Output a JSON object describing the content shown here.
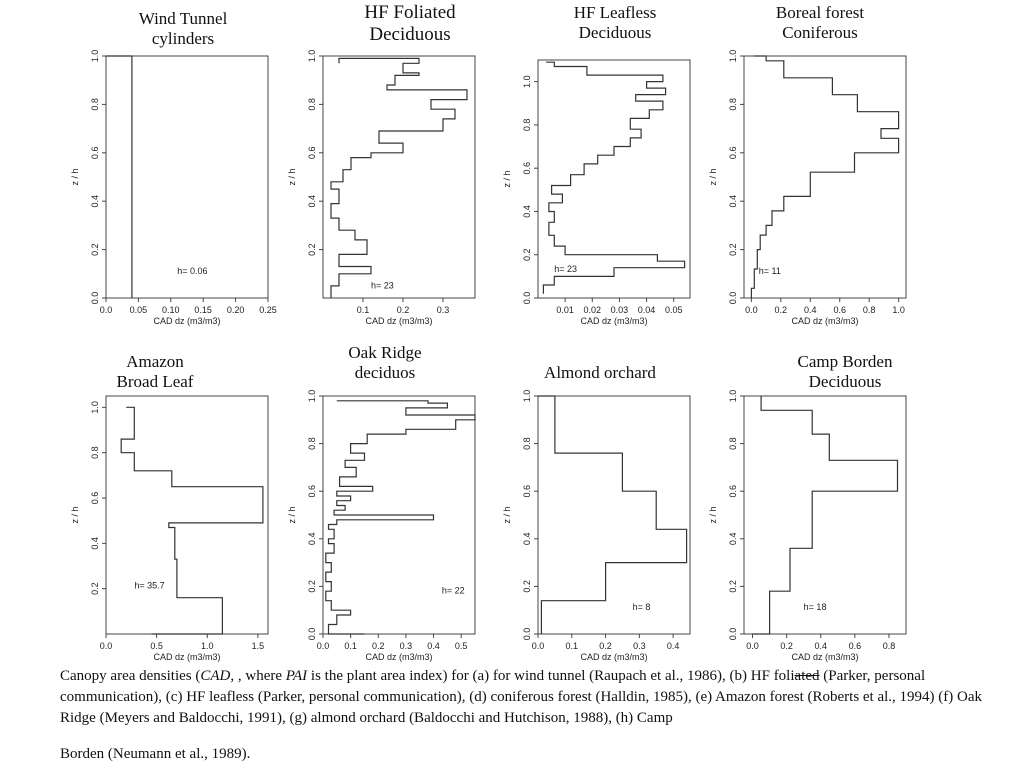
{
  "figure": {
    "caption": {
      "part1": "Canopy area densities (",
      "cad_italic": "CAD",
      "part2": ", , where ",
      "pai_italic": "PAI",
      "part3": " is the plant area index) for (a) for wind tunnel (Raupach et al., 1986), (b) HF foli",
      "strike_text": "ated",
      "part4": " (Parker, personal communication), (c) HF leafless (Parker, personal communication), (d) coniferous forest (Halldin, 1985), (e) Amazon forest (Roberts et al., 1994) (f) Oak Ridge (Meyers and Baldocchi, 1991), (g) almond orchard (Baldocchi and Hutchison, 1988), (h) Camp",
      "line_last": "Borden (Neumann et al., 1989)."
    }
  },
  "chart_data": [
    {
      "type": "line",
      "title": "Wind Tunnel\ncylinders",
      "xlabel": "CAD dz (m3/m3)",
      "ylabel": "z / h",
      "xlim": [
        0,
        0.25
      ],
      "ylim": [
        0,
        1.0
      ],
      "xticks": [
        "0.0",
        "0.05",
        "0.10",
        "0.15",
        "0.20",
        "0.25"
      ],
      "xtick_values": [
        0,
        0.05,
        0.1,
        0.15,
        0.2,
        0.25
      ],
      "yticks": [
        "0.0",
        "0.2",
        "0.4",
        "0.6",
        "0.8",
        "1.0"
      ],
      "ytick_values": [
        0,
        0.2,
        0.4,
        0.6,
        0.8,
        1.0
      ],
      "annotation": "h= 0.06",
      "annotation_pos": [
        0.11,
        0.1
      ],
      "series": [
        {
          "x": [
            0.0,
            0.04,
            0.04,
            0.04
          ],
          "y": [
            1.0,
            1.0,
            0.5,
            0.0
          ]
        }
      ]
    },
    {
      "type": "line",
      "title": "HF Foliated\nDeciduous",
      "xlabel": "CAD dz (m3/m3)",
      "ylabel": "z / h",
      "xlim": [
        0,
        0.38
      ],
      "ylim": [
        0,
        1.0
      ],
      "xticks": [
        "0.1",
        "0.2",
        "0.3"
      ],
      "xtick_values": [
        0.1,
        0.2,
        0.3
      ],
      "yticks": [
        "0.2",
        "0.4",
        "0.6",
        "0.8",
        "1.0"
      ],
      "ytick_values": [
        0.2,
        0.4,
        0.6,
        0.8,
        1.0
      ],
      "annotation": "h= 23",
      "annotation_pos": [
        0.12,
        0.04
      ],
      "series": [
        {
          "x": [
            0.02,
            0.02,
            0.04,
            0.04,
            0.12,
            0.12,
            0.04,
            0.04,
            0.11,
            0.11,
            0.08,
            0.08,
            0.04,
            0.04,
            0.02,
            0.02,
            0.04,
            0.04,
            0.02,
            0.02,
            0.05,
            0.05,
            0.07,
            0.07,
            0.12,
            0.12,
            0.2,
            0.2,
            0.14,
            0.14,
            0.3,
            0.3,
            0.33,
            0.33,
            0.27,
            0.27,
            0.36,
            0.36,
            0.16,
            0.16,
            0.18,
            0.18,
            0.24,
            0.24,
            0.2,
            0.2,
            0.24,
            0.24,
            0.04,
            0.04
          ],
          "y": [
            0.0,
            0.05,
            0.05,
            0.1,
            0.1,
            0.13,
            0.13,
            0.18,
            0.18,
            0.24,
            0.24,
            0.28,
            0.28,
            0.33,
            0.33,
            0.39,
            0.39,
            0.45,
            0.45,
            0.48,
            0.48,
            0.53,
            0.53,
            0.58,
            0.58,
            0.6,
            0.6,
            0.64,
            0.64,
            0.69,
            0.69,
            0.74,
            0.74,
            0.78,
            0.78,
            0.82,
            0.82,
            0.86,
            0.86,
            0.88,
            0.88,
            0.92,
            0.92,
            0.93,
            0.93,
            0.97,
            0.97,
            0.99,
            0.99,
            0.97
          ]
        }
      ]
    },
    {
      "type": "line",
      "title": "HF Leafless\nDeciduous",
      "xlabel": "CAD dz (m3/m3)",
      "ylabel": "z / h",
      "xlim": [
        0,
        0.056
      ],
      "ylim": [
        0,
        1.1
      ],
      "xticks": [
        "0.01",
        "0.02",
        "0.03",
        "0.04",
        "0.05"
      ],
      "xtick_values": [
        0.01,
        0.02,
        0.03,
        0.04,
        0.05
      ],
      "yticks": [
        "0.0",
        "0.2",
        "0.4",
        "0.6",
        "0.8",
        "1.0"
      ],
      "ytick_values": [
        0,
        0.2,
        0.4,
        0.6,
        0.8,
        1.0
      ],
      "annotation": "h= 23",
      "annotation_pos": [
        0.006,
        0.12
      ],
      "series": [
        {
          "x": [
            0.002,
            0.002,
            0.006,
            0.006,
            0.028,
            0.028,
            0.054,
            0.054,
            0.044,
            0.044,
            0.01,
            0.01,
            0.006,
            0.006,
            0.004,
            0.004,
            0.006,
            0.006,
            0.004,
            0.004,
            0.009,
            0.009,
            0.005,
            0.005,
            0.012,
            0.012,
            0.017,
            0.017,
            0.022,
            0.022,
            0.028,
            0.028,
            0.034,
            0.034,
            0.038,
            0.038,
            0.034,
            0.034,
            0.041,
            0.041,
            0.046,
            0.046,
            0.036,
            0.036,
            0.047,
            0.047,
            0.04,
            0.04,
            0.046,
            0.046,
            0.018,
            0.018,
            0.006,
            0.006,
            0.003
          ],
          "y": [
            0.02,
            0.06,
            0.06,
            0.1,
            0.1,
            0.14,
            0.14,
            0.17,
            0.17,
            0.2,
            0.2,
            0.24,
            0.24,
            0.29,
            0.29,
            0.35,
            0.35,
            0.4,
            0.4,
            0.44,
            0.44,
            0.48,
            0.48,
            0.52,
            0.52,
            0.57,
            0.57,
            0.62,
            0.62,
            0.66,
            0.66,
            0.7,
            0.7,
            0.74,
            0.74,
            0.78,
            0.78,
            0.83,
            0.83,
            0.87,
            0.87,
            0.91,
            0.91,
            0.94,
            0.94,
            0.97,
            0.97,
            1.0,
            1.0,
            1.03,
            1.03,
            1.07,
            1.07,
            1.09,
            1.09
          ]
        }
      ]
    },
    {
      "type": "line",
      "title": "Boreal forest\nConiferous",
      "xlabel": "CAD dz (m3/m3)",
      "ylabel": "z / h",
      "xlim": [
        -0.05,
        1.05
      ],
      "ylim": [
        0,
        1.0
      ],
      "xticks": [
        "0.0",
        "0.2",
        "0.4",
        "0.6",
        "0.8",
        "1.0"
      ],
      "xtick_values": [
        0,
        0.2,
        0.4,
        0.6,
        0.8,
        1.0
      ],
      "yticks": [
        "0.0",
        "0.2",
        "0.4",
        "0.6",
        "0.8",
        "1.0"
      ],
      "ytick_values": [
        0,
        0.2,
        0.4,
        0.6,
        0.8,
        1.0
      ],
      "annotation": "h= 11",
      "annotation_pos": [
        0.05,
        0.1
      ],
      "series": [
        {
          "x": [
            0.0,
            0.0,
            0.02,
            0.02,
            0.04,
            0.04,
            0.06,
            0.06,
            0.1,
            0.1,
            0.14,
            0.14,
            0.22,
            0.22,
            0.4,
            0.4,
            0.7,
            0.7,
            1.0,
            1.0,
            0.88,
            0.88,
            1.0,
            1.0,
            0.72,
            0.72,
            0.55,
            0.55,
            0.22,
            0.22,
            0.1,
            0.1,
            0.02
          ],
          "y": [
            0.0,
            0.04,
            0.04,
            0.12,
            0.12,
            0.2,
            0.2,
            0.26,
            0.26,
            0.3,
            0.3,
            0.36,
            0.36,
            0.42,
            0.42,
            0.52,
            0.52,
            0.6,
            0.6,
            0.66,
            0.66,
            0.7,
            0.7,
            0.77,
            0.77,
            0.84,
            0.84,
            0.91,
            0.91,
            0.98,
            0.98,
            1.0,
            1.0
          ]
        }
      ]
    },
    {
      "type": "line",
      "title": "Amazon\nBroad Leaf",
      "xlabel": "CAD dz (m3/m3)",
      "ylabel": "z / h",
      "xlim": [
        0,
        1.6
      ],
      "ylim": [
        0,
        1.05
      ],
      "xticks": [
        "0.0",
        "0.5",
        "1.0",
        "1.5"
      ],
      "xtick_values": [
        0,
        0.5,
        1.0,
        1.5
      ],
      "yticks": [
        "0.2",
        "0.4",
        "0.6",
        "0.8",
        "1.0"
      ],
      "ytick_values": [
        0.2,
        0.4,
        0.6,
        0.8,
        1.0
      ],
      "annotation": "h= 35.7",
      "annotation_pos": [
        0.28,
        0.2
      ],
      "series": [
        {
          "x": [
            0.45,
            1.15,
            1.15,
            0.7,
            0.7,
            0.68,
            0.68,
            0.62,
            0.62,
            1.55,
            1.55,
            0.65,
            0.65,
            0.65,
            0.65,
            0.28,
            0.28,
            0.15,
            0.15,
            0.28,
            0.28,
            0.2
          ],
          "y": [
            0.0,
            0.0,
            0.16,
            0.16,
            0.33,
            0.33,
            0.47,
            0.47,
            0.49,
            0.49,
            0.65,
            0.65,
            0.72,
            0.72,
            0.72,
            0.72,
            0.8,
            0.8,
            0.86,
            0.86,
            1.0,
            1.0
          ]
        }
      ]
    },
    {
      "type": "line",
      "title": "Oak Ridge\ndeciduos",
      "xlabel": "CAD dz (m3/m3)",
      "ylabel": "z / h",
      "xlim": [
        0,
        0.55
      ],
      "ylim": [
        0,
        1.0
      ],
      "xticks": [
        "0.0",
        "0.1",
        "0.2",
        "0.3",
        "0.4",
        "0.5"
      ],
      "xtick_values": [
        0,
        0.1,
        0.2,
        0.3,
        0.4,
        0.5
      ],
      "yticks": [
        "0.0",
        "0.2",
        "0.4",
        "0.6",
        "0.8",
        "1.0"
      ],
      "ytick_values": [
        0,
        0.2,
        0.4,
        0.6,
        0.8,
        1.0
      ],
      "annotation": "h= 22",
      "annotation_pos": [
        0.43,
        0.17
      ],
      "series": [
        {
          "x": [
            0.15,
            0.15,
            0.02,
            0.02,
            0.05,
            0.05,
            0.1,
            0.1,
            0.03,
            0.03,
            0.01,
            0.01,
            0.03,
            0.03,
            0.01,
            0.01,
            0.03,
            0.03,
            0.01,
            0.01,
            0.04,
            0.04,
            0.02,
            0.02,
            0.04,
            0.04,
            0.02,
            0.02,
            0.05,
            0.05,
            0.4,
            0.4,
            0.04,
            0.04,
            0.08,
            0.08,
            0.05,
            0.05,
            0.1,
            0.1,
            0.05,
            0.05,
            0.18,
            0.18,
            0.06,
            0.06,
            0.12,
            0.12,
            0.08,
            0.08,
            0.15,
            0.15,
            0.1,
            0.1,
            0.16,
            0.16,
            0.3,
            0.3,
            0.48,
            0.48,
            0.55,
            0.55,
            0.3,
            0.3,
            0.45,
            0.45,
            0.38,
            0.38,
            0.38,
            0.38,
            0.05
          ],
          "y": [
            0.0,
            0.0,
            0.0,
            0.04,
            0.04,
            0.08,
            0.08,
            0.1,
            0.1,
            0.14,
            0.14,
            0.18,
            0.18,
            0.22,
            0.22,
            0.26,
            0.26,
            0.3,
            0.3,
            0.34,
            0.34,
            0.38,
            0.38,
            0.4,
            0.4,
            0.44,
            0.44,
            0.46,
            0.46,
            0.48,
            0.48,
            0.5,
            0.5,
            0.52,
            0.52,
            0.54,
            0.54,
            0.56,
            0.56,
            0.58,
            0.58,
            0.6,
            0.6,
            0.62,
            0.62,
            0.66,
            0.66,
            0.7,
            0.7,
            0.73,
            0.73,
            0.76,
            0.76,
            0.8,
            0.8,
            0.84,
            0.84,
            0.86,
            0.86,
            0.9,
            0.9,
            0.92,
            0.92,
            0.95,
            0.95,
            0.97,
            0.97,
            0.98,
            0.98,
            0.98,
            0.98
          ]
        }
      ]
    },
    {
      "type": "line",
      "title": "Almond orchard",
      "xlabel": "CAD dz (m3/m3)",
      "ylabel": "z / h",
      "xlim": [
        0,
        0.45
      ],
      "ylim": [
        0,
        1.0
      ],
      "xticks": [
        "0.0",
        "0.1",
        "0.2",
        "0.3",
        "0.4"
      ],
      "xtick_values": [
        0,
        0.1,
        0.2,
        0.3,
        0.4
      ],
      "yticks": [
        "0.0",
        "0.2",
        "0.4",
        "0.6",
        "0.8",
        "1.0"
      ],
      "ytick_values": [
        0,
        0.2,
        0.4,
        0.6,
        0.8,
        1.0
      ],
      "annotation": "h= 8",
      "annotation_pos": [
        0.28,
        0.1
      ],
      "series": [
        {
          "x": [
            0.01,
            0.01,
            0.2,
            0.2,
            0.44,
            0.44,
            0.35,
            0.35,
            0.25,
            0.25,
            0.05,
            0.05,
            0.0
          ],
          "y": [
            0.0,
            0.14,
            0.14,
            0.3,
            0.3,
            0.44,
            0.44,
            0.6,
            0.6,
            0.76,
            0.76,
            1.0,
            1.0
          ]
        }
      ]
    },
    {
      "type": "line",
      "title": "Camp Borden\nDeciduous",
      "xlabel": "CAD dz (m3/m3)",
      "ylabel": "z / h",
      "xlim": [
        -0.05,
        0.9
      ],
      "ylim": [
        0,
        1.0
      ],
      "xticks": [
        "0.0",
        "0.2",
        "0.4",
        "0.6",
        "0.8"
      ],
      "xtick_values": [
        0,
        0.2,
        0.4,
        0.6,
        0.8
      ],
      "yticks": [
        "0.0",
        "0.2",
        "0.4",
        "0.6",
        "0.8",
        "1.0"
      ],
      "ytick_values": [
        0,
        0.2,
        0.4,
        0.6,
        0.8,
        1.0
      ],
      "annotation": "h= 18",
      "annotation_pos": [
        0.3,
        0.1
      ],
      "series": [
        {
          "x": [
            0.0,
            0.1,
            0.1,
            0.22,
            0.22,
            0.35,
            0.35,
            0.4,
            0.4,
            0.85,
            0.85,
            0.45,
            0.45,
            0.35,
            0.35,
            0.05,
            0.05
          ],
          "y": [
            0.0,
            0.0,
            0.18,
            0.18,
            0.36,
            0.36,
            0.6,
            0.6,
            0.6,
            0.6,
            0.73,
            0.73,
            0.84,
            0.84,
            0.94,
            0.94,
            1.0
          ]
        }
      ]
    }
  ]
}
